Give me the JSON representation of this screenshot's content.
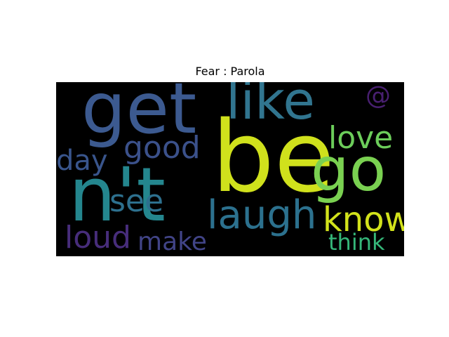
{
  "figure": {
    "title": "Fear : Parola"
  },
  "word_cloud": {
    "background": "#000000",
    "words": [
      {
        "text": "get",
        "color": "#3c5a90"
      },
      {
        "text": "like",
        "color": "#31758f"
      },
      {
        "text": "@",
        "color": "#481f70"
      },
      {
        "text": "be",
        "color": "#d0e11c"
      },
      {
        "text": "good",
        "color": "#3b518b"
      },
      {
        "text": "love",
        "color": "#6ccd5a"
      },
      {
        "text": "day",
        "color": "#39558c"
      },
      {
        "text": "go",
        "color": "#7ad151"
      },
      {
        "text": "n't",
        "color": "#24868e"
      },
      {
        "text": "see",
        "color": "#2d708e"
      },
      {
        "text": "laugh",
        "color": "#2c718e"
      },
      {
        "text": "know",
        "color": "#d2e21b"
      },
      {
        "text": "loud",
        "color": "#472d7b"
      },
      {
        "text": "make",
        "color": "#414487"
      },
      {
        "text": "think",
        "color": "#35b779"
      }
    ]
  }
}
